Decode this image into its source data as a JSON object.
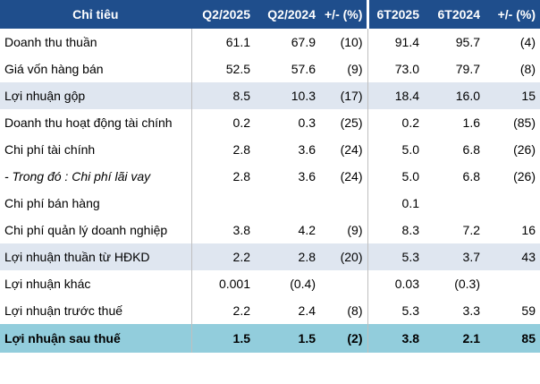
{
  "table": {
    "headers": [
      "Chỉ tiêu",
      "Q2/2025",
      "Q2/2024",
      "+/- (%)",
      "6T2025",
      "6T2024",
      "+/- (%)"
    ],
    "rows": [
      {
        "label": "Doanh thu thuần",
        "q2_2025": "61.1",
        "q2_2024": "67.9",
        "q_change": "(10)",
        "h1_2025": "91.4",
        "h1_2024": "95.7",
        "h_change": "(4)"
      },
      {
        "label": "Giá vốn hàng bán",
        "q2_2025": "52.5",
        "q2_2024": "57.6",
        "q_change": "(9)",
        "h1_2025": "73.0",
        "h1_2024": "79.7",
        "h_change": "(8)"
      },
      {
        "label": "Lợi nhuận gộp",
        "q2_2025": "8.5",
        "q2_2024": "10.3",
        "q_change": "(17)",
        "h1_2025": "18.4",
        "h1_2024": "16.0",
        "h_change": "15"
      },
      {
        "label": "Doanh thu hoạt động tài chính",
        "q2_2025": "0.2",
        "q2_2024": "0.3",
        "q_change": "(25)",
        "h1_2025": "0.2",
        "h1_2024": "1.6",
        "h_change": "(85)"
      },
      {
        "label": "Chi phí tài chính",
        "q2_2025": "2.8",
        "q2_2024": "3.6",
        "q_change": "(24)",
        "h1_2025": "5.0",
        "h1_2024": "6.8",
        "h_change": "(26)"
      },
      {
        "label": "- Trong đó : Chi phí lãi vay",
        "q2_2025": "2.8",
        "q2_2024": "3.6",
        "q_change": "(24)",
        "h1_2025": "5.0",
        "h1_2024": "6.8",
        "h_change": "(26)"
      },
      {
        "label": "Chi phí bán hàng",
        "q2_2025": "",
        "q2_2024": "",
        "q_change": "",
        "h1_2025": "0.1",
        "h1_2024": "",
        "h_change": ""
      },
      {
        "label": "Chi phí quản lý doanh nghiệp",
        "q2_2025": "3.8",
        "q2_2024": "4.2",
        "q_change": "(9)",
        "h1_2025": "8.3",
        "h1_2024": "7.2",
        "h_change": "16"
      },
      {
        "label": "Lợi nhuận thuần từ HĐKD",
        "q2_2025": "2.2",
        "q2_2024": "2.8",
        "q_change": "(20)",
        "h1_2025": "5.3",
        "h1_2024": "3.7",
        "h_change": "43"
      },
      {
        "label": "Lợi nhuận khác",
        "q2_2025": "0.001",
        "q2_2024": "(0.4)",
        "q_change": "",
        "h1_2025": "0.03",
        "h1_2024": "(0.3)",
        "h_change": ""
      },
      {
        "label": "Lợi nhuận trước thuế",
        "q2_2025": "2.2",
        "q2_2024": "2.4",
        "q_change": "(8)",
        "h1_2025": "5.3",
        "h1_2024": "3.3",
        "h_change": "59"
      },
      {
        "label": "Lợi nhuận sau thuế",
        "q2_2025": "1.5",
        "q2_2024": "1.5",
        "q_change": "(2)",
        "h1_2025": "3.8",
        "h1_2024": "2.1",
        "h_change": "85"
      }
    ]
  },
  "colors": {
    "header_bg": "#1f4e8c",
    "header_text": "#ffffff",
    "shaded_row_bg": "#dfe6f0",
    "total_row_bg": "#92cddc",
    "negative_text": "#e00000"
  }
}
